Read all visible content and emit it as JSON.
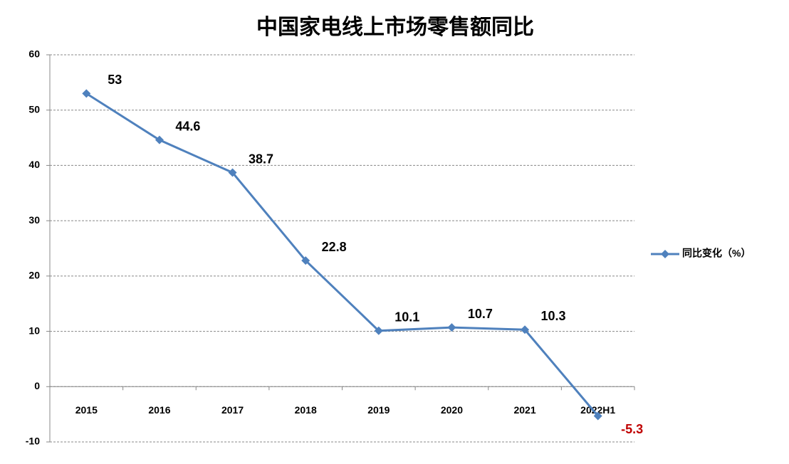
{
  "chart_data": {
    "type": "line",
    "title": "中国家电线上市场零售额同比",
    "categories": [
      "2015",
      "2016",
      "2017",
      "2018",
      "2019",
      "2020",
      "2021",
      "2022H1"
    ],
    "series": [
      {
        "name": "同比变化（%）",
        "color": "#4f81bd",
        "values": [
          53,
          44.6,
          38.7,
          22.8,
          10.1,
          10.7,
          10.3,
          -5.3
        ]
      }
    ],
    "ylim": [
      -10,
      60
    ],
    "yticks": [
      -10,
      0,
      10,
      20,
      30,
      40,
      50,
      60
    ],
    "grid": true,
    "legend": "right",
    "negative_label_color": "#c00000"
  }
}
